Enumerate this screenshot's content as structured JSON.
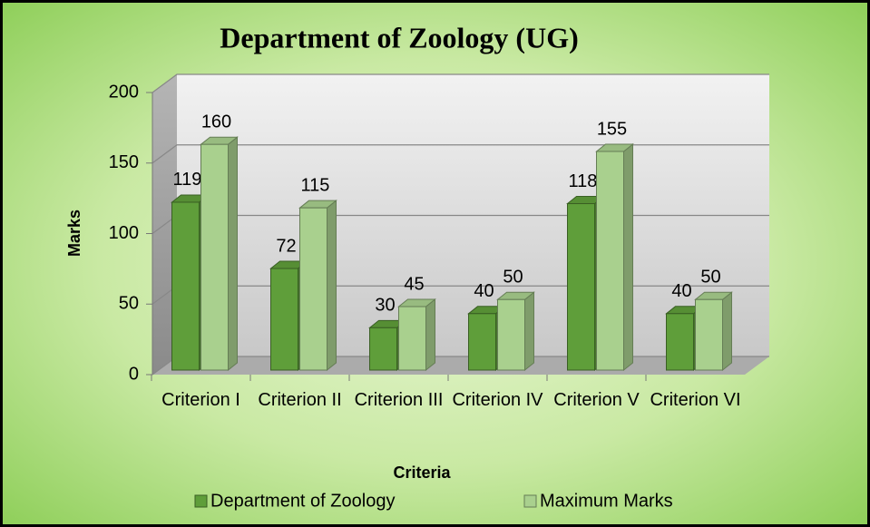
{
  "chart_data": {
    "type": "bar",
    "title": "Department of Zoology (UG)",
    "categories": [
      "Criterion I",
      "Criterion II",
      "Criterion III",
      "Criterion IV",
      "Criterion V",
      "Criterion VI"
    ],
    "series": [
      {
        "name": "Department of Zoology",
        "color": "#5f9e3a",
        "values": [
          119,
          72,
          30,
          40,
          118,
          40
        ]
      },
      {
        "name": "Maximum Marks",
        "color": "#a9d08e",
        "values": [
          160,
          115,
          45,
          50,
          155,
          50
        ]
      }
    ],
    "ylim": [
      0,
      200
    ],
    "yticks": [
      0,
      50,
      100,
      150,
      200
    ],
    "grid": true,
    "xlabel": "Criteria",
    "ylabel": "Marks",
    "legend": "bottom"
  }
}
